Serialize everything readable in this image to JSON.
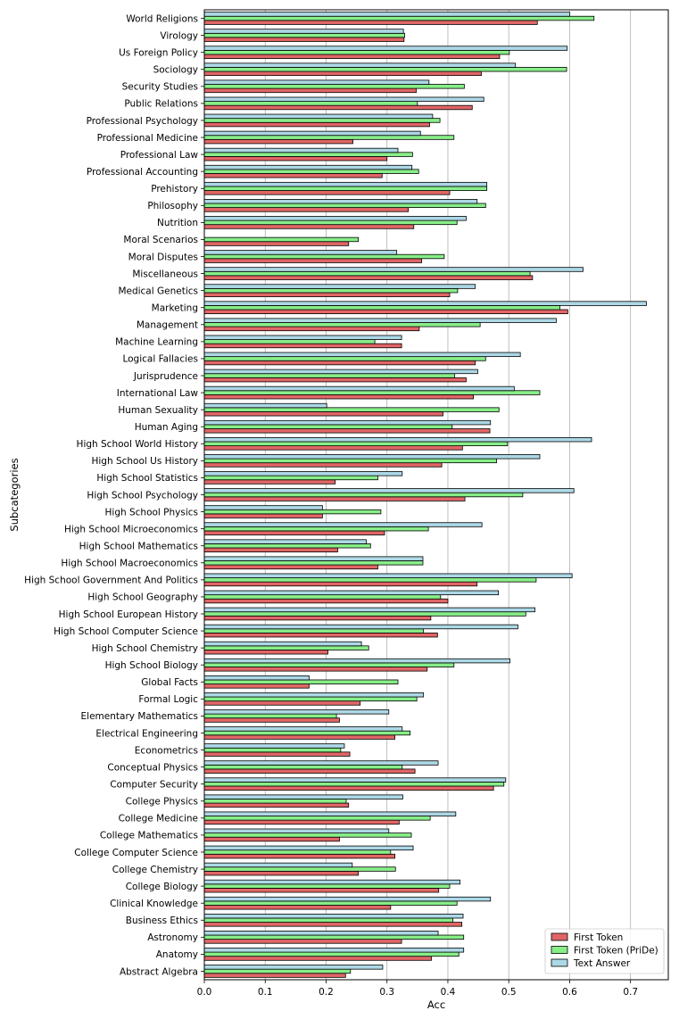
{
  "chart_data": {
    "type": "bar",
    "orientation": "horizontal",
    "title": "",
    "xlabel": "Acc",
    "ylabel": "Subcategories",
    "xlim": [
      0.0,
      0.76
    ],
    "xticks": [
      "0.0",
      "0.1",
      "0.2",
      "0.3",
      "0.4",
      "0.5",
      "0.6",
      "0.7"
    ],
    "grid": "vertical",
    "legend_position": "bottom-right",
    "categories": [
      "World Religions",
      "Virology",
      "Us Foreign Policy",
      "Sociology",
      "Security Studies",
      "Public Relations",
      "Professional Psychology",
      "Professional Medicine",
      "Professional Law",
      "Professional Accounting",
      "Prehistory",
      "Philosophy",
      "Nutrition",
      "Moral Scenarios",
      "Moral Disputes",
      "Miscellaneous",
      "Medical Genetics",
      "Marketing",
      "Management",
      "Machine Learning",
      "Logical Fallacies",
      "Jurisprudence",
      "International Law",
      "Human Sexuality",
      "Human Aging",
      "High School World History",
      "High School Us History",
      "High School Statistics",
      "High School Psychology",
      "High School Physics",
      "High School Microeconomics",
      "High School Mathematics",
      "High School Macroeconomics",
      "High School Government And Politics",
      "High School Geography",
      "High School European History",
      "High School Computer Science",
      "High School Chemistry",
      "High School Biology",
      "Global Facts",
      "Formal Logic",
      "Elementary Mathematics",
      "Electrical Engineering",
      "Econometrics",
      "Conceptual Physics",
      "Computer Security",
      "College Physics",
      "College Medicine",
      "College Mathematics",
      "College Computer Science",
      "College Chemistry",
      "College Biology",
      "Clinical Knowledge",
      "Business Ethics",
      "Astronomy",
      "Anatomy",
      "Abstract Algebra"
    ],
    "series": [
      {
        "name": "First Token",
        "color": "#e06666",
        "values": [
          0.547,
          0.328,
          0.485,
          0.455,
          0.348,
          0.44,
          0.37,
          0.244,
          0.3,
          0.292,
          0.403,
          0.335,
          0.344,
          0.237,
          0.357,
          0.539,
          0.403,
          0.597,
          0.353,
          0.324,
          0.445,
          0.43,
          0.442,
          0.392,
          0.469,
          0.424,
          0.39,
          0.215,
          0.428,
          0.194,
          0.296,
          0.219,
          0.285,
          0.448,
          0.4,
          0.372,
          0.383,
          0.203,
          0.366,
          0.172,
          0.256,
          0.222,
          0.313,
          0.239,
          0.346,
          0.475,
          0.237,
          0.32,
          0.222,
          0.313,
          0.253,
          0.385,
          0.306,
          0.423,
          0.324,
          0.373,
          0.232
        ]
      },
      {
        "name": "First Token (PriDe)",
        "color": "#88ee88",
        "values": [
          0.64,
          0.329,
          0.501,
          0.595,
          0.427,
          0.35,
          0.387,
          0.41,
          0.342,
          0.352,
          0.464,
          0.462,
          0.415,
          0.253,
          0.394,
          0.535,
          0.416,
          0.584,
          0.453,
          0.28,
          0.462,
          0.411,
          0.551,
          0.484,
          0.407,
          0.498,
          0.48,
          0.285,
          0.523,
          0.29,
          0.368,
          0.273,
          0.359,
          0.545,
          0.388,
          0.528,
          0.36,
          0.27,
          0.41,
          0.318,
          0.349,
          0.217,
          0.338,
          0.224,
          0.325,
          0.492,
          0.233,
          0.371,
          0.34,
          0.306,
          0.314,
          0.403,
          0.415,
          0.408,
          0.426,
          0.418,
          0.24
        ]
      },
      {
        "name": "Text Answer",
        "color": "#add8e6",
        "values": [
          0.6,
          0.327,
          0.596,
          0.511,
          0.369,
          0.459,
          0.375,
          0.355,
          0.318,
          0.341,
          0.464,
          0.448,
          0.43,
          0.0,
          0.316,
          0.622,
          0.445,
          0.726,
          0.578,
          0.324,
          0.519,
          0.449,
          0.509,
          0.201,
          0.47,
          0.636,
          0.551,
          0.325,
          0.607,
          0.194,
          0.456,
          0.266,
          0.359,
          0.604,
          0.483,
          0.543,
          0.515,
          0.258,
          0.502,
          0.172,
          0.36,
          0.303,
          0.325,
          0.23,
          0.384,
          0.495,
          0.326,
          0.413,
          0.303,
          0.343,
          0.243,
          0.42,
          0.47,
          0.425,
          0.384,
          0.426,
          0.293
        ]
      }
    ]
  }
}
